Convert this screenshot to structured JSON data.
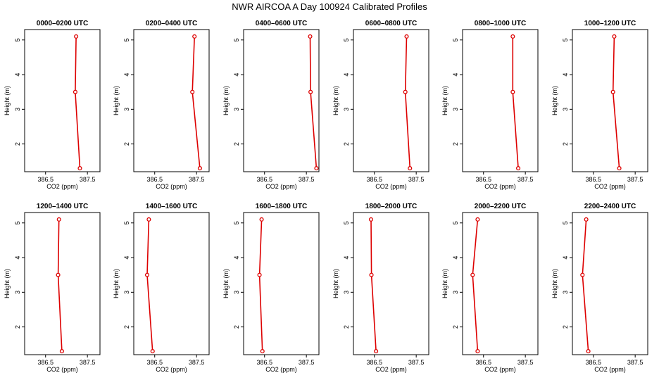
{
  "title": "NWR AIRCOA A  Day 100924  Calibrated Profiles",
  "chart_data": [
    {
      "type": "line",
      "title": "0000–0200 UTC",
      "xlabel": "CO2 (ppm)",
      "ylabel": "Height (m)",
      "xlim": [
        386.0,
        387.8
      ],
      "ylim": [
        1.2,
        5.3
      ],
      "xticks": [
        "386.5",
        "387.5"
      ],
      "yticks": [
        "2",
        "3",
        "4",
        "5"
      ],
      "grid": false,
      "color": "#dd0000",
      "series": [
        {
          "x": [
            387.32,
            387.21,
            387.23
          ],
          "y": [
            1.3,
            3.5,
            5.1
          ]
        }
      ]
    },
    {
      "type": "line",
      "title": "0200–0400 UTC",
      "xlabel": "CO2 (ppm)",
      "ylabel": "Height (m)",
      "xlim": [
        386.0,
        387.8
      ],
      "ylim": [
        1.2,
        5.3
      ],
      "xticks": [
        "386.5",
        "387.5"
      ],
      "yticks": [
        "2",
        "3",
        "4",
        "5"
      ],
      "grid": false,
      "color": "#dd0000",
      "series": [
        {
          "x": [
            387.58,
            387.4,
            387.45
          ],
          "y": [
            1.3,
            3.5,
            5.1
          ]
        }
      ]
    },
    {
      "type": "line",
      "title": "0400–0600 UTC",
      "xlabel": "CO2 (ppm)",
      "ylabel": "Height (m)",
      "xlim": [
        386.0,
        387.8
      ],
      "ylim": [
        1.2,
        5.3
      ],
      "xticks": [
        "386.5",
        "387.5"
      ],
      "yticks": [
        "2",
        "3",
        "4",
        "5"
      ],
      "grid": false,
      "color": "#dd0000",
      "series": [
        {
          "x": [
            387.74,
            387.6,
            387.59
          ],
          "y": [
            1.3,
            3.5,
            5.1
          ]
        }
      ]
    },
    {
      "type": "line",
      "title": "0600–0800 UTC",
      "xlabel": "CO2 (ppm)",
      "ylabel": "Height (m)",
      "xlim": [
        386.0,
        387.8
      ],
      "ylim": [
        1.2,
        5.3
      ],
      "xticks": [
        "386.5",
        "387.5"
      ],
      "yticks": [
        "2",
        "3",
        "4",
        "5"
      ],
      "grid": false,
      "color": "#dd0000",
      "series": [
        {
          "x": [
            387.35,
            387.24,
            387.27
          ],
          "y": [
            1.3,
            3.5,
            5.1
          ]
        }
      ]
    },
    {
      "type": "line",
      "title": "0800–1000 UTC",
      "xlabel": "CO2 (ppm)",
      "ylabel": "Height (m)",
      "xlim": [
        386.0,
        387.8
      ],
      "ylim": [
        1.2,
        5.3
      ],
      "xticks": [
        "386.5",
        "387.5"
      ],
      "yticks": [
        "2",
        "3",
        "4",
        "5"
      ],
      "grid": false,
      "color": "#dd0000",
      "series": [
        {
          "x": [
            387.33,
            387.2,
            387.2
          ],
          "y": [
            1.3,
            3.5,
            5.1
          ]
        }
      ]
    },
    {
      "type": "line",
      "title": "1000–1200 UTC",
      "xlabel": "CO2 (ppm)",
      "ylabel": "Height (m)",
      "xlim": [
        386.0,
        387.8
      ],
      "ylim": [
        1.2,
        5.3
      ],
      "xticks": [
        "386.5",
        "387.5"
      ],
      "yticks": [
        "2",
        "3",
        "4",
        "5"
      ],
      "grid": false,
      "color": "#dd0000",
      "series": [
        {
          "x": [
            387.12,
            386.97,
            387.0
          ],
          "y": [
            1.3,
            3.5,
            5.1
          ]
        }
      ]
    },
    {
      "type": "line",
      "title": "1200–1400 UTC",
      "xlabel": "CO2 (ppm)",
      "ylabel": "Height (m)",
      "xlim": [
        386.0,
        387.8
      ],
      "ylim": [
        1.2,
        5.3
      ],
      "xticks": [
        "386.5",
        "387.5"
      ],
      "yticks": [
        "2",
        "3",
        "4",
        "5"
      ],
      "grid": false,
      "color": "#dd0000",
      "series": [
        {
          "x": [
            386.89,
            386.8,
            386.82
          ],
          "y": [
            1.3,
            3.5,
            5.1
          ]
        }
      ]
    },
    {
      "type": "line",
      "title": "1400–1600 UTC",
      "xlabel": "CO2 (ppm)",
      "ylabel": "Height (m)",
      "xlim": [
        386.0,
        387.8
      ],
      "ylim": [
        1.2,
        5.3
      ],
      "xticks": [
        "386.5",
        "387.5"
      ],
      "yticks": [
        "2",
        "3",
        "4",
        "5"
      ],
      "grid": false,
      "color": "#dd0000",
      "series": [
        {
          "x": [
            386.45,
            386.32,
            386.36
          ],
          "y": [
            1.3,
            3.5,
            5.1
          ]
        }
      ]
    },
    {
      "type": "line",
      "title": "1600–1800 UTC",
      "xlabel": "CO2 (ppm)",
      "ylabel": "Height (m)",
      "xlim": [
        386.0,
        387.8
      ],
      "ylim": [
        1.2,
        5.3
      ],
      "xticks": [
        "386.5",
        "387.5"
      ],
      "yticks": [
        "2",
        "3",
        "4",
        "5"
      ],
      "grid": false,
      "color": "#dd0000",
      "series": [
        {
          "x": [
            386.45,
            386.38,
            386.43
          ],
          "y": [
            1.3,
            3.5,
            5.1
          ]
        }
      ]
    },
    {
      "type": "line",
      "title": "1800–2000 UTC",
      "xlabel": "CO2 (ppm)",
      "ylabel": "Height (m)",
      "xlim": [
        386.0,
        387.8
      ],
      "ylim": [
        1.2,
        5.3
      ],
      "xticks": [
        "386.5",
        "387.5"
      ],
      "yticks": [
        "2",
        "3",
        "4",
        "5"
      ],
      "grid": false,
      "color": "#dd0000",
      "series": [
        {
          "x": [
            386.54,
            386.43,
            386.42
          ],
          "y": [
            1.3,
            3.5,
            5.1
          ]
        }
      ]
    },
    {
      "type": "line",
      "title": "2000–2200 UTC",
      "xlabel": "CO2 (ppm)",
      "ylabel": "Height (m)",
      "xlim": [
        386.0,
        387.8
      ],
      "ylim": [
        1.2,
        5.3
      ],
      "xticks": [
        "386.5",
        "387.5"
      ],
      "yticks": [
        "2",
        "3",
        "4",
        "5"
      ],
      "grid": false,
      "color": "#dd0000",
      "series": [
        {
          "x": [
            386.36,
            386.24,
            386.36
          ],
          "y": [
            1.3,
            3.5,
            5.1
          ]
        }
      ]
    },
    {
      "type": "line",
      "title": "2200–2400 UTC",
      "xlabel": "CO2 (ppm)",
      "ylabel": "Height (m)",
      "xlim": [
        386.0,
        387.8
      ],
      "ylim": [
        1.2,
        5.3
      ],
      "xticks": [
        "386.5",
        "387.5"
      ],
      "yticks": [
        "2",
        "3",
        "4",
        "5"
      ],
      "grid": false,
      "color": "#dd0000",
      "series": [
        {
          "x": [
            386.38,
            386.24,
            386.33
          ],
          "y": [
            1.3,
            3.5,
            5.1
          ]
        }
      ]
    }
  ]
}
